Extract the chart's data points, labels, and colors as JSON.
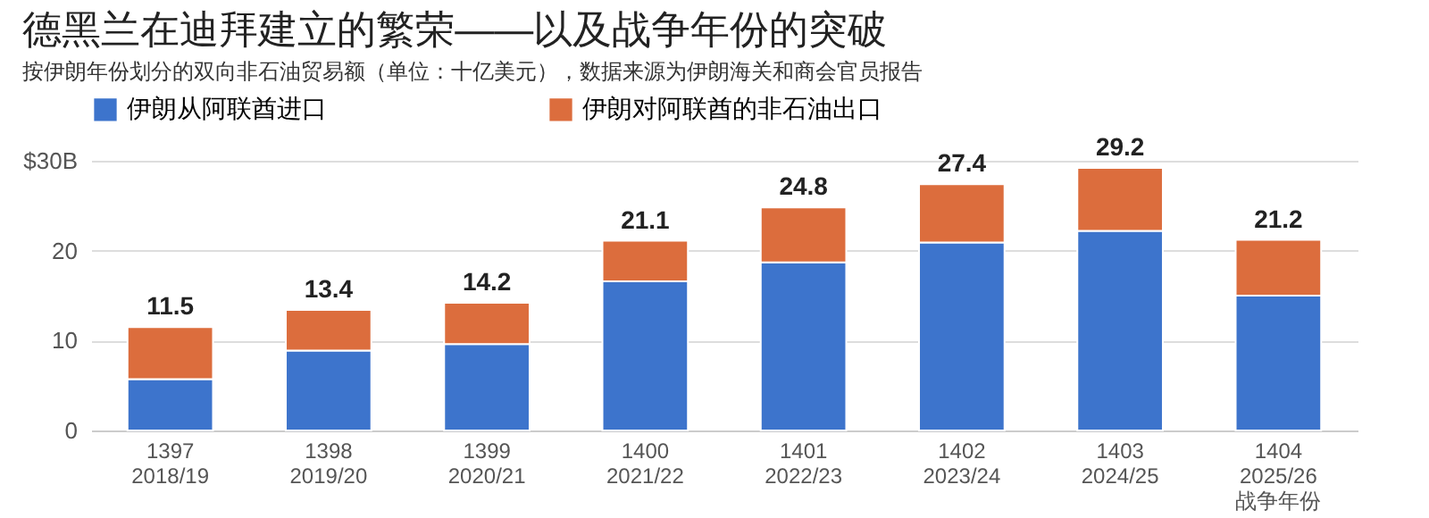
{
  "chart_data": {
    "type": "bar",
    "stacked": true,
    "title": "德黑兰在迪拜建立的繁荣——以及战争年份的突破",
    "subtitle": "按伊朗年份划分的双向非石油贸易额（单位：十亿美元），数据来源为伊朗海关和商会官员报告",
    "categories": [
      "1397\n2018/19",
      "1398\n2019/20",
      "1399\n2020/21",
      "1400\n2021/22",
      "1401\n2022/23",
      "1402\n2023/24",
      "1403\n2024/25",
      "1404\n2025/26\n战争年份"
    ],
    "series": [
      {
        "name": "伊朗从阿联酋进口",
        "color": "#3d74cc",
        "values": [
          5.7,
          8.9,
          9.6,
          16.6,
          18.7,
          20.9,
          22.2,
          15.0
        ]
      },
      {
        "name": "伊朗对阿联酋的非石油出口",
        "color": "#dc6d3d",
        "values": [
          5.8,
          4.5,
          4.6,
          4.5,
          6.1,
          6.5,
          7.0,
          6.2
        ]
      }
    ],
    "totals": [
      "11.5",
      "13.4",
      "14.2",
      "21.1",
      "24.8",
      "27.4",
      "29.2",
      "21.2"
    ],
    "ylim": [
      0,
      30
    ],
    "yticks": [
      0,
      10,
      20,
      {
        "value": 30,
        "label": "$30B"
      }
    ],
    "grid": "y",
    "legend": "top"
  }
}
